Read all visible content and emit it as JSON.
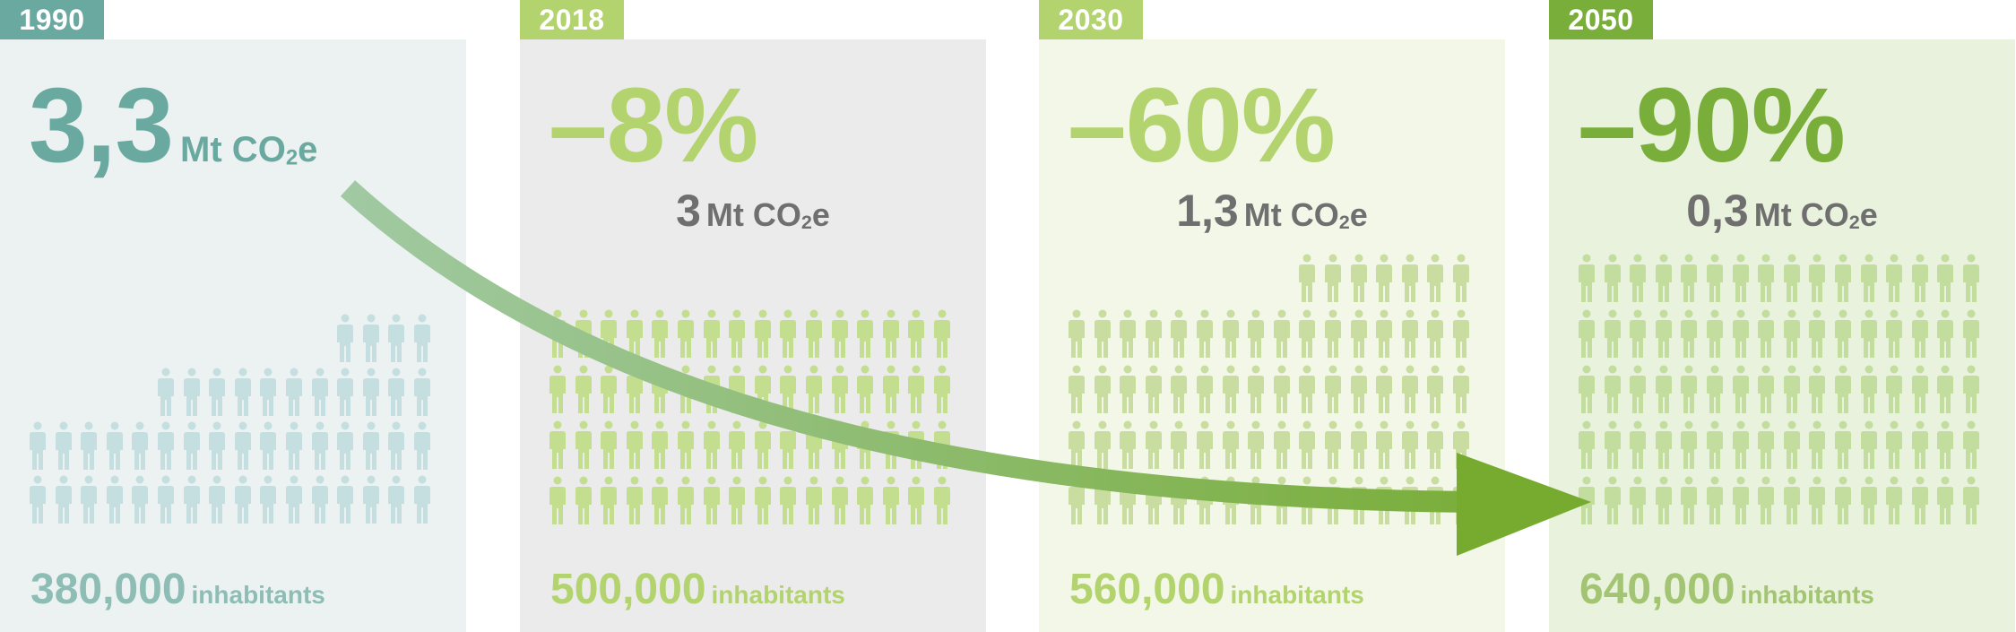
{
  "panels": [
    {
      "year": "1990",
      "headline_value": "3,3",
      "headline_unit": "Mt CO",
      "headline_unit_suffix": "e",
      "sub_value": "",
      "sub_unit": "",
      "sub_unit_suffix": "",
      "inhabitants_value": "380,000",
      "inhabitants_label": "inhabitants",
      "colors": {
        "tab": "#6aa9a0",
        "bg": "#ecf2f2",
        "headline": "#6aa9a0",
        "icons": "#c5dfe1",
        "inhabitants": "#8dbdb4"
      }
    },
    {
      "year": "2018",
      "headline_value": "–8%",
      "headline_unit": "",
      "headline_unit_suffix": "",
      "sub_value": "3",
      "sub_unit": "Mt CO",
      "sub_unit_suffix": "e",
      "inhabitants_value": "500,000",
      "inhabitants_label": "inhabitants",
      "colors": {
        "tab": "#b2d36e",
        "bg": "#ebebeb",
        "headline": "#b2d36e",
        "icons": "#c4de90",
        "inhabitants": "#b2d36e"
      }
    },
    {
      "year": "2030",
      "headline_value": "–60%",
      "headline_unit": "",
      "headline_unit_suffix": "",
      "sub_value": "1,3",
      "sub_unit": "Mt CO",
      "sub_unit_suffix": "e",
      "inhabitants_value": "560,000",
      "inhabitants_label": "inhabitants",
      "colors": {
        "tab": "#b2d36e",
        "bg": "#f3f7e8",
        "headline": "#b2d36e",
        "icons": "#c8dd9f",
        "inhabitants": "#b2d36e"
      }
    },
    {
      "year": "2050",
      "headline_value": "–90%",
      "headline_unit": "",
      "headline_unit_suffix": "",
      "sub_value": "0,3",
      "sub_unit": "Mt CO",
      "sub_unit_suffix": "e",
      "inhabitants_value": "640,000",
      "inhabitants_label": "inhabitants",
      "colors": {
        "tab": "#7aae3a",
        "bg": "#e9f2dc",
        "headline": "#7aae3a",
        "icons": "#c3dd9e",
        "inhabitants": "#a3c573"
      }
    }
  ],
  "icon": "person-icon",
  "arrow": {
    "from": "#a1c9a3",
    "to": "#76ab2f"
  }
}
